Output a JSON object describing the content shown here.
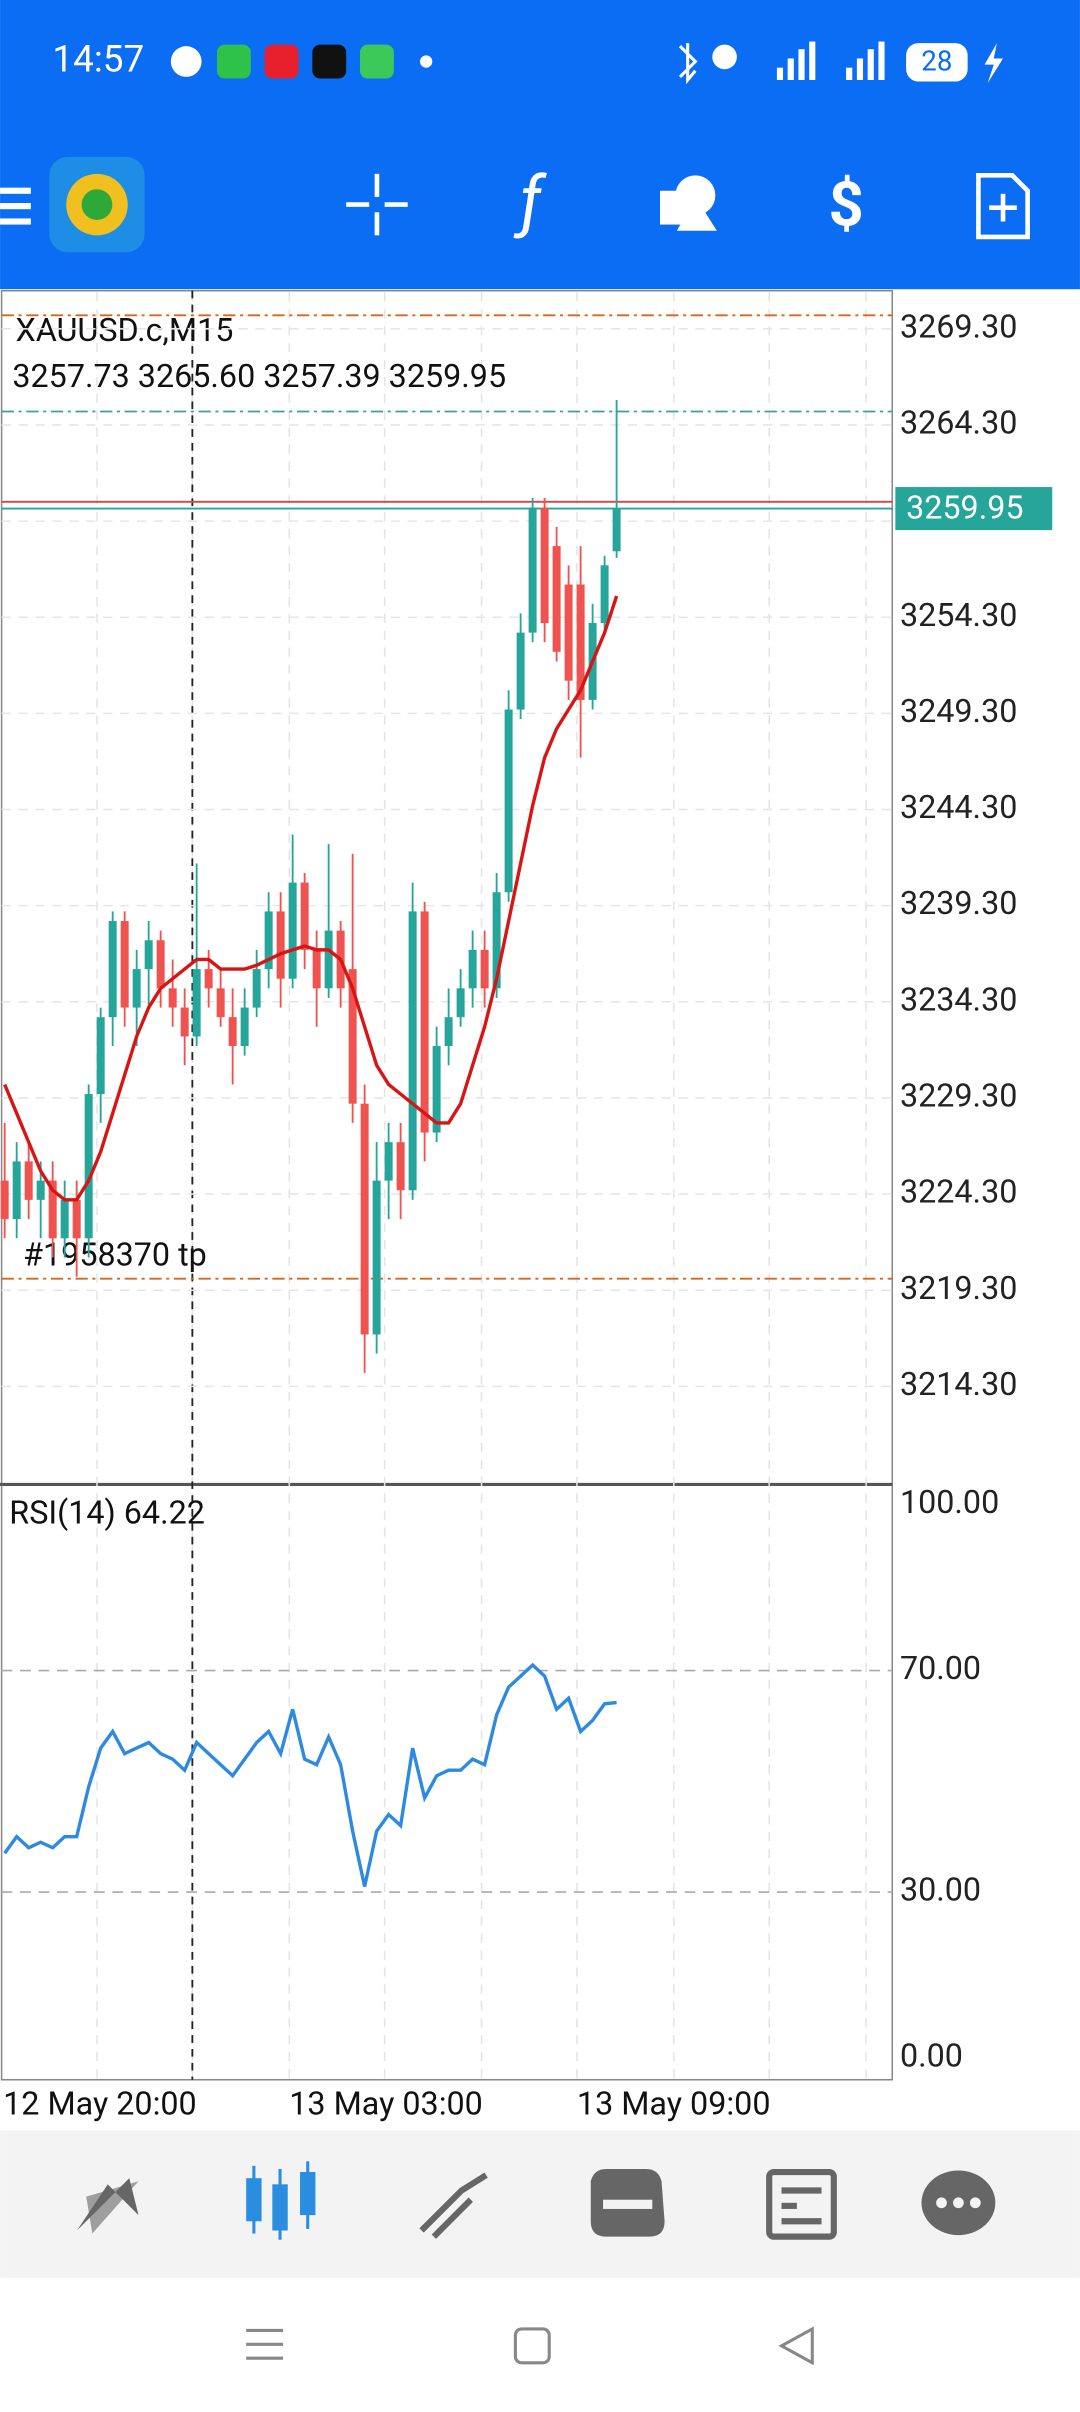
{
  "status_bar": {
    "time": "14:57",
    "battery": "28"
  },
  "chart_data": [
    {
      "type": "candlestick",
      "title": "XAUUSD.c,M15",
      "subtitle": "3257.73 3265.60 3257.39 3259.95",
      "up_color": "#26a69a",
      "down_color": "#ef5350",
      "open": [
        3225,
        3223,
        3226,
        3224,
        3225,
        3222,
        3224,
        3222,
        3229.5,
        3233.5,
        3238.5,
        3234,
        3236,
        3237.5,
        3235,
        3234,
        3232.5,
        3236,
        3235,
        3233.5,
        3232,
        3234,
        3236,
        3239,
        3235.5,
        3240.5,
        3237,
        3235,
        3238,
        3236,
        3229,
        3217,
        3225,
        3227,
        3224.5,
        3239,
        3227.5,
        3232,
        3233.5,
        3235,
        3237,
        3235,
        3240,
        3249.5,
        3253.5,
        3260,
        3258,
        3256,
        3256,
        3250,
        3254,
        3257.73
      ],
      "high": [
        3228,
        3227,
        3227,
        3226,
        3226,
        3225,
        3225,
        3230,
        3234,
        3239,
        3239,
        3237,
        3238.5,
        3238,
        3236.5,
        3235,
        3241.5,
        3237,
        3236,
        3235,
        3235,
        3237,
        3240,
        3240,
        3243,
        3241,
        3238,
        3242.5,
        3238.5,
        3242,
        3230,
        3227,
        3228,
        3228,
        3240.5,
        3239.5,
        3233,
        3235,
        3236,
        3238,
        3238,
        3241,
        3250.5,
        3254.5,
        3260.5,
        3260.5,
        3259,
        3257,
        3258,
        3255,
        3257.5,
        3265.6
      ],
      "low": [
        3222,
        3222,
        3223,
        3222,
        3221,
        3221,
        3220,
        3221,
        3228,
        3232,
        3233,
        3232,
        3234,
        3234,
        3233,
        3231,
        3232,
        3234,
        3233,
        3230,
        3231.5,
        3233.5,
        3235,
        3234,
        3235,
        3236,
        3233,
        3234.5,
        3234,
        3228,
        3215,
        3216,
        3223,
        3223,
        3224,
        3226,
        3227,
        3231,
        3233,
        3234,
        3234,
        3234.5,
        3239.5,
        3249,
        3253,
        3253,
        3252,
        3250,
        3247,
        3249.5,
        3253.5,
        3257.39
      ],
      "close": [
        3223,
        3226,
        3224,
        3225,
        3222,
        3224,
        3222,
        3229.5,
        3233.5,
        3238.5,
        3234,
        3236,
        3237.5,
        3235,
        3234,
        3232.5,
        3236,
        3235,
        3233.5,
        3232,
        3234,
        3236,
        3239,
        3235.5,
        3240.5,
        3237,
        3235,
        3238,
        3235,
        3229,
        3217,
        3225,
        3227,
        3224.5,
        3239,
        3227.5,
        3232,
        3233.5,
        3235,
        3237,
        3235,
        3240,
        3249.5,
        3253.5,
        3260,
        3254,
        3252.5,
        3251,
        3250,
        3254,
        3257,
        3259.95
      ],
      "ma": {
        "color": "#d81414",
        "values": [
          3230,
          3228.5,
          3227,
          3225.5,
          3224.5,
          3224,
          3224,
          3225,
          3226.5,
          3228.5,
          3230.5,
          3232.5,
          3234,
          3235,
          3235.5,
          3236,
          3236.5,
          3236.5,
          3236,
          3236,
          3236,
          3236.2,
          3236.5,
          3236.8,
          3237,
          3237.2,
          3237,
          3237,
          3236.5,
          3235,
          3233,
          3231,
          3230,
          3229.5,
          3229,
          3228.5,
          3228,
          3228,
          3229,
          3231,
          3233,
          3235.5,
          3238.5,
          3241.5,
          3244.5,
          3247,
          3248.5,
          3249.5,
          3250.5,
          3252,
          3253.5,
          3255.4
        ]
      },
      "ylim": [
        3209.2,
        3271.2
      ],
      "yticks": [
        {
          "value": 3269.3,
          "label": "3269.30"
        },
        {
          "value": 3264.3,
          "label": "3264.30"
        },
        {
          "value": 3259.3,
          "label": "3259.30"
        },
        {
          "value": 3254.3,
          "label": "3254.30"
        },
        {
          "value": 3249.3,
          "label": "3249.30"
        },
        {
          "value": 3244.3,
          "label": "3244.30"
        },
        {
          "value": 3239.3,
          "label": "3239.30"
        },
        {
          "value": 3234.3,
          "label": "3234.30"
        },
        {
          "value": 3229.3,
          "label": "3229.30"
        },
        {
          "value": 3224.3,
          "label": "3224.30"
        },
        {
          "value": 3219.3,
          "label": "3219.30"
        },
        {
          "value": 3214.3,
          "label": "3214.30"
        }
      ],
      "levels": [
        {
          "value": 3270.0,
          "color": "#d2691e"
        },
        {
          "value": 3219.9,
          "color": "#d2691e",
          "label": "#1958370 tp"
        },
        {
          "value": 3265.0,
          "color": "#3aa0a0"
        },
        {
          "value": 3260.3,
          "color": "#e04040"
        }
      ],
      "bid": {
        "value": 3259.95,
        "color": "#26a69a"
      },
      "x_labels": [
        "12 May 20:00",
        "13 May 03:00",
        "13 May 09:00"
      ]
    },
    {
      "type": "line",
      "title": "RSI(14) 64.22",
      "color": "#2d8ae0",
      "values": [
        37,
        40,
        38,
        39,
        38,
        40,
        40,
        49,
        56,
        59,
        55,
        56,
        57,
        55,
        54,
        52,
        57,
        55,
        53,
        51,
        54,
        57,
        59,
        55,
        63,
        54,
        53,
        58,
        53,
        41,
        31,
        41,
        44,
        42,
        56,
        47,
        51,
        52,
        52,
        54,
        53,
        62,
        67,
        69,
        71,
        69,
        63,
        65,
        59,
        61,
        64,
        64.22
      ],
      "ylim": [
        0,
        100
      ],
      "yticks": [
        {
          "value": 100,
          "label": "100.00"
        },
        {
          "value": 70,
          "label": "70.00"
        },
        {
          "value": 30,
          "label": "30.00"
        },
        {
          "value": 0,
          "label": "0.00"
        }
      ]
    }
  ]
}
